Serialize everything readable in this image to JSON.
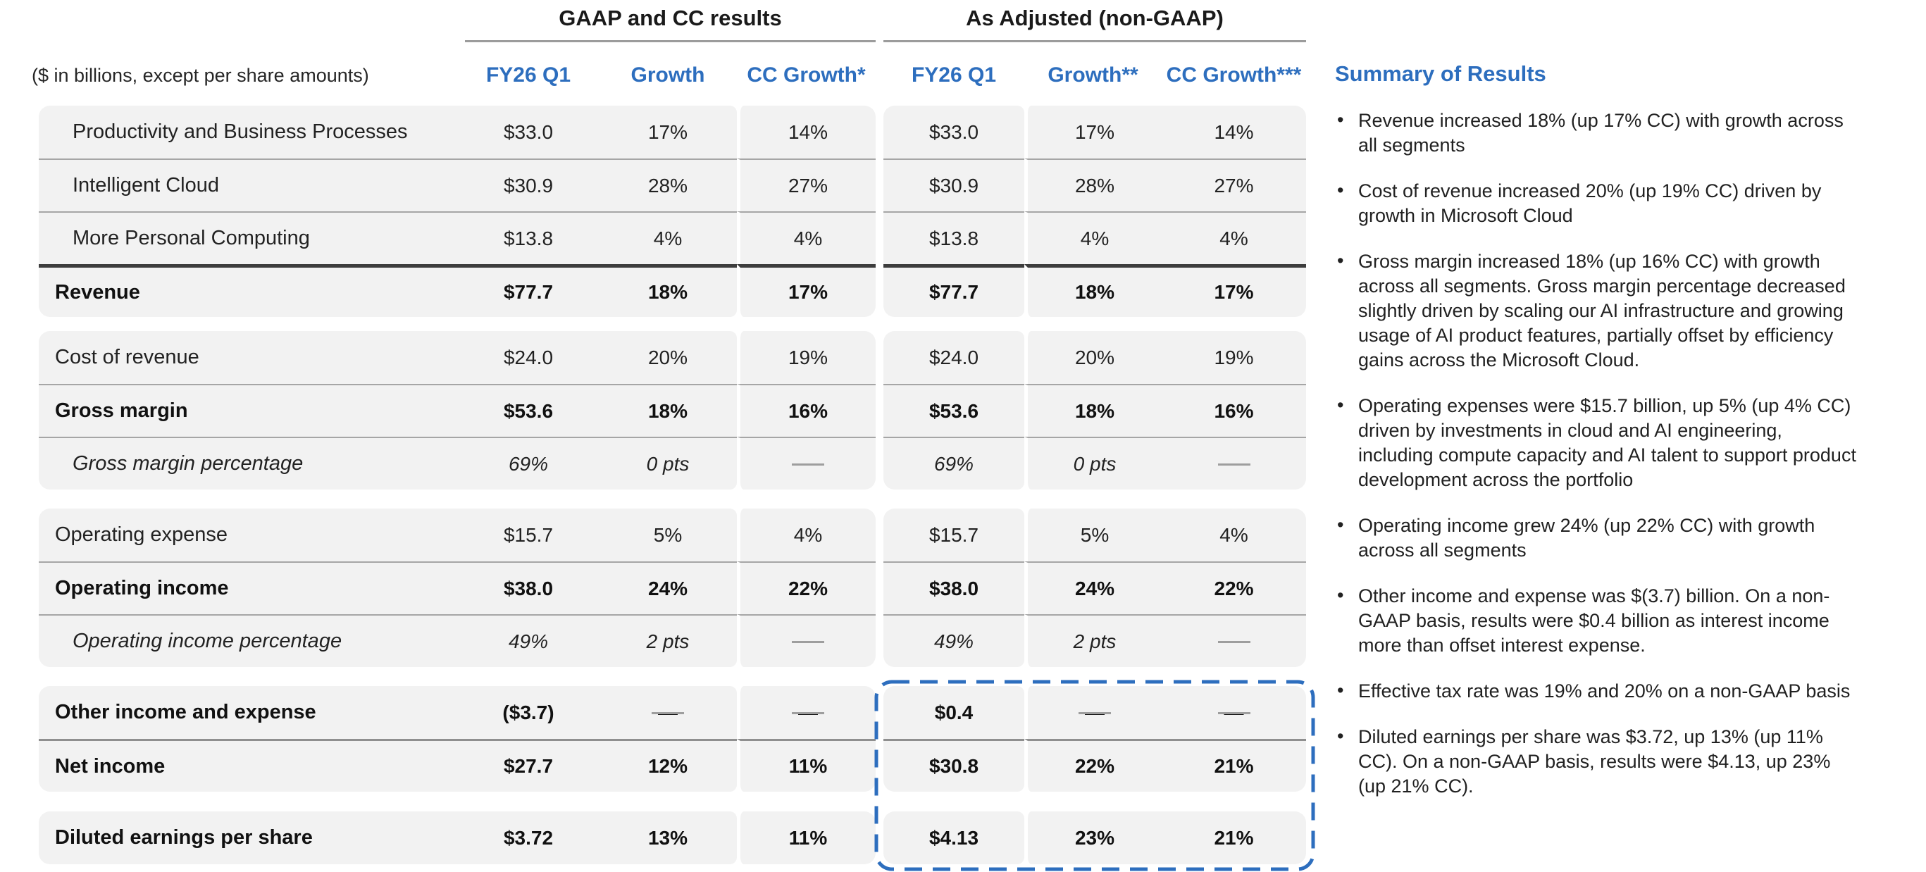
{
  "header": {
    "note": "($ in billions, except per share amounts)",
    "groups": [
      {
        "title": "GAAP and CC results",
        "columns": [
          "FY26 Q1",
          "Growth",
          "CC Growth*"
        ]
      },
      {
        "title": "As Adjusted (non-GAAP)",
        "columns": [
          "FY26 Q1",
          "Growth**",
          "CC Growth***"
        ]
      }
    ]
  },
  "table": {
    "row_groups": [
      {
        "rows": [
          {
            "label": "Productivity and Business Processes",
            "indent": true,
            "gaap": [
              "$33.0",
              "17%",
              "14%"
            ],
            "non_gaap": [
              "$33.0",
              "17%",
              "14%"
            ]
          },
          {
            "label": "Intelligent Cloud",
            "indent": true,
            "sep": "thin",
            "gaap": [
              "$30.9",
              "28%",
              "27%"
            ],
            "non_gaap": [
              "$30.9",
              "28%",
              "27%"
            ]
          },
          {
            "label": "More Personal Computing",
            "indent": true,
            "sep": "thin",
            "gaap": [
              "$13.8",
              "4%",
              "4%"
            ],
            "non_gaap": [
              "$13.8",
              "4%",
              "4%"
            ]
          },
          {
            "label": "Revenue",
            "bold": true,
            "sep": "thick",
            "gaap": [
              "$77.7",
              "18%",
              "17%"
            ],
            "non_gaap": [
              "$77.7",
              "18%",
              "17%"
            ]
          }
        ]
      },
      {
        "rows": [
          {
            "label": "Cost of revenue",
            "gaap": [
              "$24.0",
              "20%",
              "19%"
            ],
            "non_gaap": [
              "$24.0",
              "20%",
              "19%"
            ]
          },
          {
            "label": "Gross margin",
            "bold": true,
            "sep": "thin",
            "gaap": [
              "$53.6",
              "18%",
              "16%"
            ],
            "non_gaap": [
              "$53.6",
              "18%",
              "16%"
            ]
          },
          {
            "label": "Gross margin percentage",
            "italic": true,
            "indent": true,
            "sep": "thin",
            "gaap": [
              "69%",
              "0 pts",
              "—"
            ],
            "non_gaap": [
              "69%",
              "0 pts",
              "—"
            ]
          }
        ]
      },
      {
        "rows": [
          {
            "label": "Operating expense",
            "gaap": [
              "$15.7",
              "5%",
              "4%"
            ],
            "non_gaap": [
              "$15.7",
              "5%",
              "4%"
            ]
          },
          {
            "label": "Operating income",
            "bold": true,
            "sep": "thin",
            "gaap": [
              "$38.0",
              "24%",
              "22%"
            ],
            "non_gaap": [
              "$38.0",
              "24%",
              "22%"
            ]
          },
          {
            "label": "Operating income percentage",
            "italic": true,
            "indent": true,
            "sep": "thin",
            "gaap": [
              "49%",
              "2 pts",
              "—"
            ],
            "non_gaap": [
              "49%",
              "2 pts",
              "—"
            ]
          }
        ]
      },
      {
        "rows": [
          {
            "label": "Other income and expense",
            "bold": true,
            "gaap": [
              "($3.7)",
              "—",
              "—"
            ],
            "non_gaap": [
              "$0.4",
              "—",
              "—"
            ]
          },
          {
            "label": "Net income",
            "bold": true,
            "sep": "medium",
            "gaap": [
              "$27.7",
              "12%",
              "11%"
            ],
            "non_gaap": [
              "$30.8",
              "22%",
              "21%"
            ]
          }
        ]
      },
      {
        "rows": [
          {
            "label": "Diluted earnings per share",
            "bold": true,
            "gaap": [
              "$3.72",
              "13%",
              "11%"
            ],
            "non_gaap": [
              "$4.13",
              "23%",
              "21%"
            ]
          }
        ]
      }
    ]
  },
  "summary": {
    "title": "Summary of Results",
    "bullets": [
      "Revenue increased 18% (up 17% CC) with growth across all segments",
      "Cost of revenue increased 20% (up 19% CC) driven by growth in Microsoft Cloud",
      "Gross margin increased 18% (up 16% CC) with growth across all segments. Gross margin percentage decreased slightly driven by scaling our AI infrastructure and growing usage of AI product features, partially offset by efficiency gains across the Microsoft Cloud.",
      "Operating expenses were $15.7 billion, up 5% (up 4% CC) driven by investments in cloud and AI engineering, including compute capacity and AI talent to support product development across the portfolio",
      "Operating income grew 24% (up 22% CC) with growth across all segments",
      "Other income and expense was $(3.7) billion. On a non-GAAP basis, results were $0.4 billion as interest income more than offset interest expense.",
      "Effective tax rate was 19% and 20% on a non-GAAP basis",
      "Diluted earnings per share was $3.72, up 13% (up 11% CC). On a non-GAAP basis, results were $4.13, up 23% (up 21% CC)."
    ]
  },
  "colors": {
    "accent_blue": "#2d6ebe",
    "row_background": "#f2f2f2",
    "separator_thin": "#a6a6a6",
    "separator_medium": "#8f8f8f",
    "separator_thick": "#3d3d3d",
    "dash_mark": "#9e9e9e",
    "underline_gray": "#9c9c9c"
  }
}
